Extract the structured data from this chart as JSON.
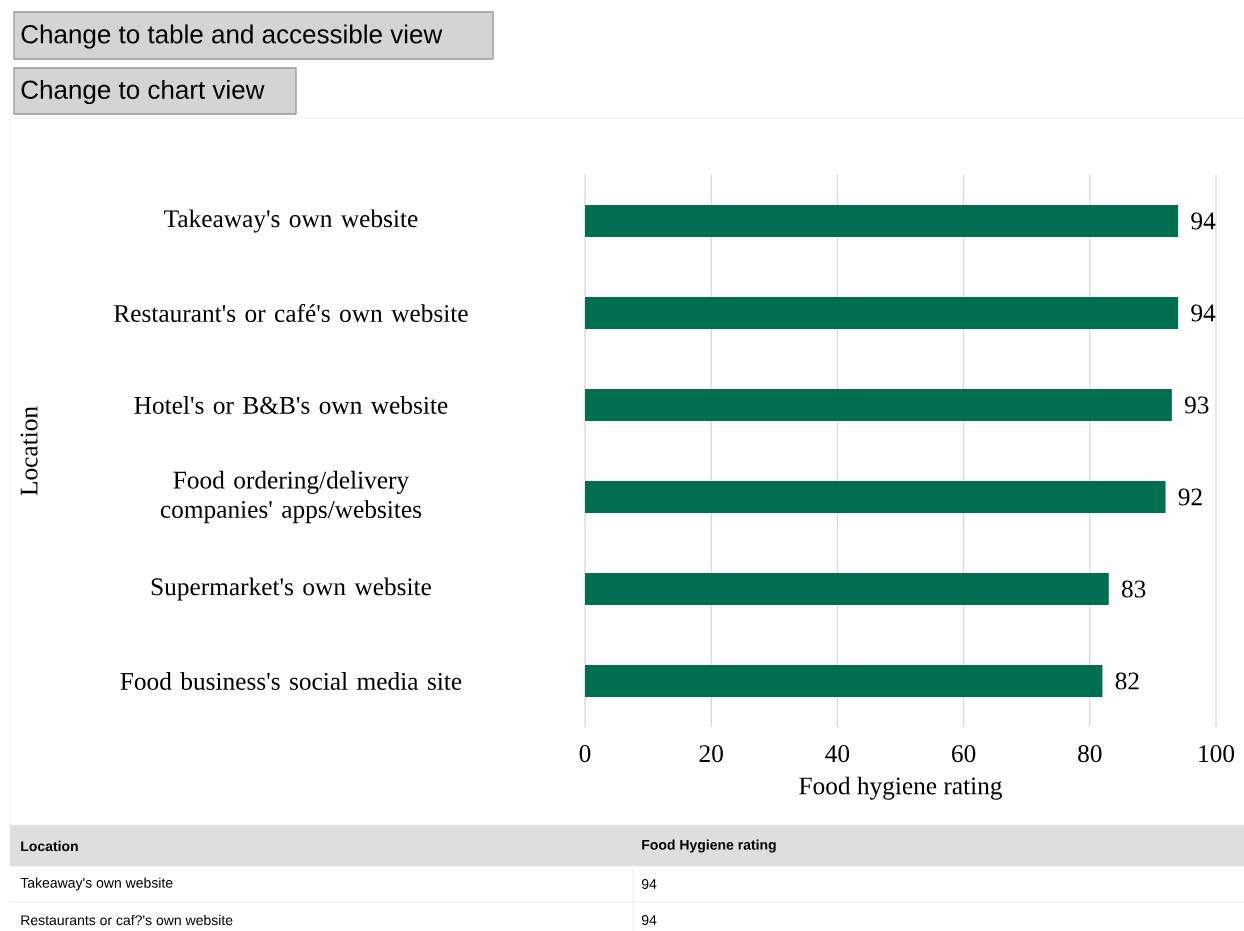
{
  "chart_data": {
    "type": "bar",
    "orientation": "horizontal",
    "categories": [
      "Takeaway's own website",
      "Restaurant's or café's own website",
      "Hotel's or B&B's own website",
      "Food ordering/delivery companies' apps/websites",
      "Supermarket's own website",
      "Food business's social media site"
    ],
    "values": [
      94,
      94,
      93,
      92,
      83,
      82
    ],
    "color": "#006f51",
    "data_labels": true,
    "xlim": [
      0,
      100
    ],
    "xticks": [
      0,
      20,
      40,
      60,
      80,
      100
    ],
    "grid": "x",
    "xlabel": "Food hygiene rating",
    "ylabel": "Location",
    "annotations": [
      "Change to table and accessible view",
      "Change to chart view",
      "Location",
      "Food Hygiene rating",
      "Takeaway's own website",
      "94",
      "Restaurants or caf?'s own website",
      "94"
    ]
  }
}
